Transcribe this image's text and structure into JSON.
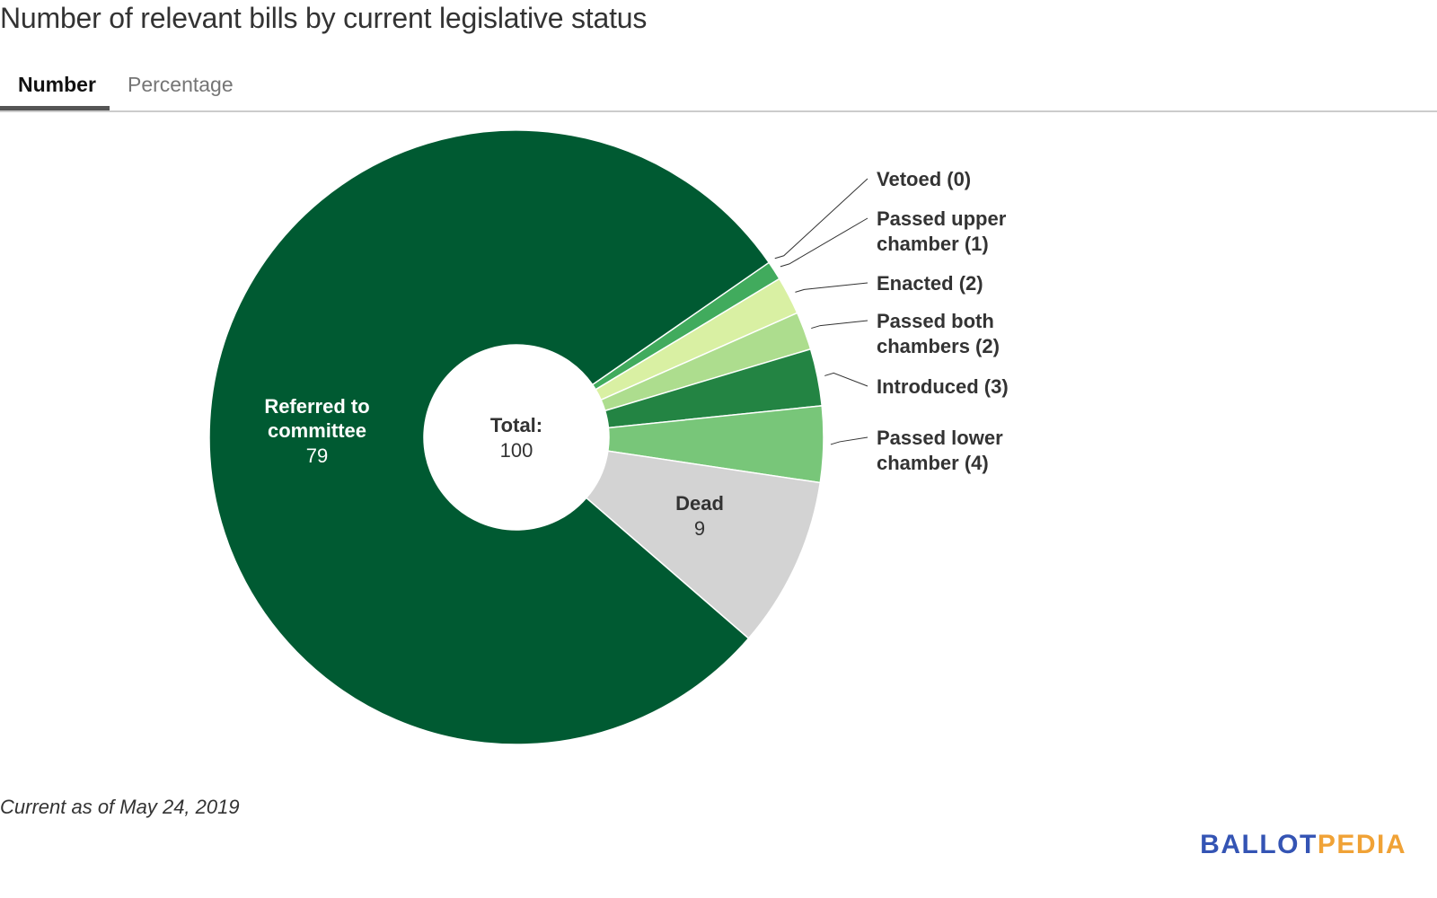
{
  "header": {
    "title": "Number of relevant bills by current legislative status"
  },
  "tabs": [
    {
      "label": "Number",
      "active": true
    },
    {
      "label": "Percentage",
      "active": false
    }
  ],
  "chart_data": {
    "type": "pie",
    "variant": "donut",
    "title": "Number of relevant bills by current legislative status",
    "center_label": {
      "title": "Total:",
      "value": "100"
    },
    "total": 100,
    "slices": [
      {
        "name": "Vetoed",
        "value": 0,
        "label": "Vetoed (0)",
        "color": "#1b5e3a",
        "label_lines": [
          "Vetoed (0)"
        ],
        "label_mode": "outside"
      },
      {
        "name": "Passed upper chamber",
        "value": 1,
        "label": "Passed upper chamber (1)",
        "color": "#41ab5d",
        "label_lines": [
          "Passed upper",
          "chamber (1)"
        ],
        "label_mode": "outside"
      },
      {
        "name": "Enacted",
        "value": 2,
        "label": "Enacted (2)",
        "color": "#d9f0a3",
        "label_lines": [
          "Enacted (2)"
        ],
        "label_mode": "outside"
      },
      {
        "name": "Passed both chambers",
        "value": 2,
        "label": "Passed both chambers (2)",
        "color": "#addd8e",
        "label_lines": [
          "Passed both",
          "chambers (2)"
        ],
        "label_mode": "outside"
      },
      {
        "name": "Introduced",
        "value": 3,
        "label": "Introduced (3)",
        "color": "#238443",
        "label_lines": [
          "Introduced (3)"
        ],
        "label_mode": "outside"
      },
      {
        "name": "Passed lower chamber",
        "value": 4,
        "label": "Passed lower chamber (4)",
        "color": "#78c679",
        "label_lines": [
          "Passed lower",
          "chamber (4)"
        ],
        "label_mode": "outside"
      },
      {
        "name": "Dead",
        "value": 9,
        "label": "Dead",
        "value_label": "9",
        "color": "#d3d3d3",
        "label_lines": [
          "Dead"
        ],
        "label_mode": "inside",
        "text_color": "#333333"
      },
      {
        "name": "Referred to committee",
        "value": 79,
        "label": "Referred to committee",
        "value_label": "79",
        "color": "#005a32",
        "label_lines": [
          "Referred to",
          "committee"
        ],
        "label_mode": "inside",
        "text_color": "#ffffff"
      }
    ]
  },
  "footer": {
    "note": "Current as of May 24, 2019",
    "logo_part1": "BALLOT",
    "logo_part2": "PEDIA"
  }
}
